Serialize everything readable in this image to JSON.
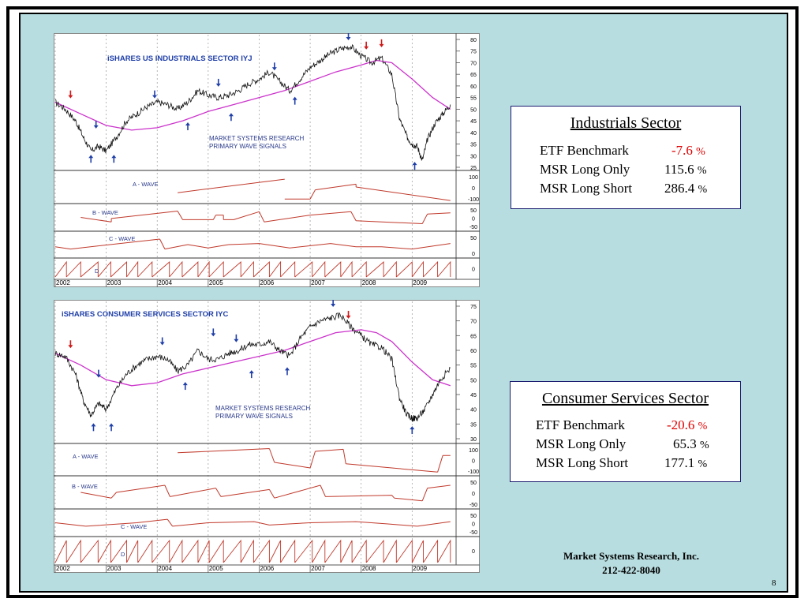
{
  "slide": {
    "page_number": "8",
    "footer_company": "Market Systems Research, Inc.",
    "footer_phone": "212-422-8040"
  },
  "colors": {
    "background_panel": "#b8dde0",
    "ma_line": "#cc33cc",
    "wave_line": "#c0392b",
    "up_arrow": "#1f3fa8",
    "down_arrow_blue": "#1f3fa8",
    "down_arrow_red": "#d01818",
    "negative_value": "#e00000",
    "title_blue": "#1f3fa8"
  },
  "summaries": [
    {
      "title": "Industrials Sector",
      "rows": [
        {
          "label": "ETF Benchmark",
          "value": "-7.6",
          "unit": "%",
          "negative": true
        },
        {
          "label": "MSR Long Only",
          "value": "115.6",
          "unit": "%",
          "negative": false
        },
        {
          "label": "MSR Long Short",
          "value": "286.4",
          "unit": "%",
          "negative": false
        }
      ]
    },
    {
      "title": "Consumer Services Sector",
      "rows": [
        {
          "label": "ETF Benchmark",
          "value": "-20.6",
          "unit": "%",
          "negative": true
        },
        {
          "label": "MSR Long Only",
          "value": "65.3",
          "unit": "%",
          "negative": false
        },
        {
          "label": "MSR Long Short",
          "value": "177.1",
          "unit": "%",
          "negative": false
        }
      ]
    }
  ],
  "chart_data": [
    {
      "type": "line",
      "title": "iSHARES US INDUSTRIALS SECTOR   IYJ",
      "annotation": [
        "MARKET SYSTEMS RESEARCH",
        "PRIMARY WAVE SIGNALS"
      ],
      "x_tick_labels": [
        "2002",
        "2003",
        "2004",
        "2005",
        "2006",
        "2007",
        "2008",
        "2009"
      ],
      "xlim": [
        2002.0,
        2009.8
      ],
      "ylim": [
        25,
        80
      ],
      "y_ticks": [
        25,
        30,
        35,
        40,
        45,
        50,
        55,
        60,
        65,
        70,
        75,
        80
      ],
      "grid": "vertical dotted at year boundaries",
      "price": {
        "x": [
          2002.0,
          2002.2,
          2002.4,
          2002.55,
          2002.7,
          2002.85,
          2003.0,
          2003.2,
          2003.4,
          2003.6,
          2003.8,
          2004.0,
          2004.2,
          2004.4,
          2004.6,
          2004.8,
          2005.0,
          2005.2,
          2005.4,
          2005.6,
          2005.8,
          2006.0,
          2006.2,
          2006.4,
          2006.6,
          2006.8,
          2007.0,
          2007.2,
          2007.4,
          2007.6,
          2007.8,
          2008.0,
          2008.2,
          2008.4,
          2008.6,
          2008.75,
          2008.9,
          2009.0,
          2009.1,
          2009.2,
          2009.3,
          2009.45,
          2009.6,
          2009.75
        ],
        "y": [
          53,
          50,
          45,
          38,
          32,
          34,
          32,
          38,
          45,
          48,
          51,
          53,
          52,
          50,
          53,
          58,
          56,
          55,
          56,
          58,
          61,
          63,
          66,
          62,
          58,
          63,
          68,
          71,
          74,
          76,
          77,
          73,
          70,
          72,
          65,
          46,
          38,
          35,
          34,
          28,
          37,
          44,
          48,
          52
        ]
      },
      "moving_average": {
        "x": [
          2002.0,
          2002.5,
          2003.0,
          2003.5,
          2004.0,
          2004.5,
          2005.0,
          2005.5,
          2006.0,
          2006.5,
          2007.0,
          2007.5,
          2008.0,
          2008.3,
          2008.6,
          2009.0,
          2009.4,
          2009.75
        ],
        "y": [
          53,
          48,
          43,
          41,
          42,
          45,
          49,
          52,
          55,
          58,
          62,
          66,
          69,
          71,
          70,
          63,
          55,
          50
        ]
      },
      "signals": [
        {
          "x": 2002.3,
          "y": 55,
          "type": "sell",
          "color": "red"
        },
        {
          "x": 2002.8,
          "y": 42,
          "type": "sell",
          "color": "blue"
        },
        {
          "x": 2002.7,
          "y": 30,
          "type": "buy",
          "color": "blue"
        },
        {
          "x": 2003.15,
          "y": 30,
          "type": "buy",
          "color": "blue"
        },
        {
          "x": 2003.95,
          "y": 55,
          "type": "sell",
          "color": "blue"
        },
        {
          "x": 2004.6,
          "y": 44,
          "type": "buy",
          "color": "blue"
        },
        {
          "x": 2005.2,
          "y": 60,
          "type": "sell",
          "color": "blue"
        },
        {
          "x": 2005.45,
          "y": 48,
          "type": "buy",
          "color": "blue"
        },
        {
          "x": 2006.3,
          "y": 67,
          "type": "sell",
          "color": "blue"
        },
        {
          "x": 2006.7,
          "y": 55,
          "type": "buy",
          "color": "blue"
        },
        {
          "x": 2007.75,
          "y": 80,
          "type": "sell",
          "color": "blue"
        },
        {
          "x": 2008.1,
          "y": 76,
          "type": "sell",
          "color": "red"
        },
        {
          "x": 2008.4,
          "y": 77,
          "type": "sell",
          "color": "red"
        },
        {
          "x": 2009.05,
          "y": 27,
          "type": "buy",
          "color": "blue"
        }
      ],
      "waves": [
        {
          "name": "A - WAVE",
          "y_ticks": [
            "100",
            "0",
            "-100"
          ],
          "segments": [
            [
              2004.4,
              -40,
              2006.5,
              55
            ],
            [
              2006.5,
              -85,
              2007.0,
              -85
            ],
            [
              2007.0,
              -85,
              2007.1,
              -20
            ],
            [
              2007.1,
              -20,
              2007.9,
              20
            ],
            [
              2007.9,
              20,
              2007.9,
              0
            ],
            [
              2007.9,
              0,
              2009.75,
              -95
            ]
          ]
        },
        {
          "name": "B - WAVE",
          "y_ticks": [
            "50",
            "0",
            "-50"
          ],
          "segments": [
            [
              2002.5,
              0,
              2003.1,
              -40
            ],
            [
              2003.1,
              -40,
              2003.1,
              -10
            ],
            [
              2003.1,
              -10,
              2004.4,
              55
            ],
            [
              2004.4,
              55,
              2004.5,
              -20
            ],
            [
              2004.5,
              -20,
              2005.1,
              -20
            ],
            [
              2005.1,
              -20,
              2005.15,
              20
            ],
            [
              2005.15,
              20,
              2005.3,
              20
            ],
            [
              2005.3,
              20,
              2005.3,
              -20
            ],
            [
              2005.3,
              -20,
              2005.5,
              -20
            ],
            [
              2005.5,
              -20,
              2006.0,
              50
            ],
            [
              2006.0,
              50,
              2006.1,
              -40
            ],
            [
              2006.1,
              -40,
              2007.0,
              20
            ],
            [
              2007.0,
              20,
              2007.8,
              50
            ],
            [
              2007.8,
              50,
              2007.9,
              -30
            ],
            [
              2007.9,
              -30,
              2009.2,
              -55
            ],
            [
              2009.2,
              -55,
              2009.3,
              30
            ],
            [
              2009.3,
              30,
              2009.75,
              40
            ]
          ]
        },
        {
          "name": "C - WAVE",
          "y_ticks": [
            "50",
            "0"
          ],
          "segments": [
            [
              2002.0,
              -20,
              2002.3,
              -40
            ],
            [
              2002.3,
              -40,
              2004.05,
              50
            ],
            [
              2004.05,
              50,
              2004.15,
              -40
            ],
            [
              2004.15,
              -40,
              2004.6,
              0
            ],
            [
              2004.6,
              0,
              2005.0,
              -30
            ],
            [
              2005.0,
              -30,
              2005.4,
              0
            ],
            [
              2005.4,
              0,
              2006.0,
              10
            ],
            [
              2006.0,
              10,
              2006.6,
              -30
            ],
            [
              2006.6,
              -30,
              2007.4,
              10
            ],
            [
              2007.4,
              10,
              2007.9,
              -20
            ],
            [
              2007.9,
              -20,
              2008.4,
              -20
            ],
            [
              2008.4,
              -20,
              2009.0,
              -40
            ],
            [
              2009.0,
              -40,
              2009.75,
              10
            ]
          ]
        },
        {
          "name": "D",
          "y_ticks": [
            "0"
          ],
          "sawtooth": true
        }
      ]
    },
    {
      "type": "line",
      "title": "iSHARES CONSUMER SERVICES SECTOR    IYC",
      "annotation": [
        "MARKET SYSTEMS RESEARCH",
        "PRIMARY WAVE SIGNALS"
      ],
      "x_tick_labels": [
        "2002",
        "2003",
        "2004",
        "2005",
        "2006",
        "2007",
        "2008",
        "2009"
      ],
      "xlim": [
        2002.0,
        2009.8
      ],
      "ylim": [
        30,
        75
      ],
      "y_ticks": [
        30,
        35,
        40,
        45,
        50,
        55,
        60,
        65,
        70,
        75
      ],
      "grid": "vertical dotted at year boundaries",
      "price": {
        "x": [
          2002.0,
          2002.2,
          2002.4,
          2002.55,
          2002.7,
          2002.85,
          2003.0,
          2003.2,
          2003.4,
          2003.6,
          2003.8,
          2004.0,
          2004.2,
          2004.4,
          2004.6,
          2004.8,
          2005.0,
          2005.2,
          2005.4,
          2005.6,
          2005.8,
          2006.0,
          2006.2,
          2006.4,
          2006.6,
          2006.8,
          2007.0,
          2007.2,
          2007.4,
          2007.6,
          2007.8,
          2008.0,
          2008.2,
          2008.4,
          2008.6,
          2008.75,
          2008.9,
          2009.0,
          2009.1,
          2009.25,
          2009.4,
          2009.55,
          2009.75
        ],
        "y": [
          59,
          58,
          52,
          43,
          38,
          42,
          40,
          47,
          52,
          55,
          57,
          58,
          57,
          53,
          55,
          60,
          57,
          57,
          59,
          60,
          62,
          62,
          63,
          60,
          58,
          64,
          68,
          70,
          71,
          72,
          68,
          65,
          62,
          61,
          57,
          44,
          38,
          37,
          37,
          40,
          45,
          50,
          54
        ]
      },
      "moving_average": {
        "x": [
          2002.0,
          2002.5,
          2003.0,
          2003.5,
          2004.0,
          2004.5,
          2005.0,
          2005.5,
          2006.0,
          2006.5,
          2007.0,
          2007.5,
          2008.0,
          2008.3,
          2008.6,
          2009.0,
          2009.4,
          2009.75
        ],
        "y": [
          59,
          55,
          50,
          48,
          49,
          52,
          54,
          56,
          58,
          60,
          63,
          66,
          67,
          66,
          63,
          56,
          50,
          48
        ]
      },
      "signals": [
        {
          "x": 2002.3,
          "y": 61,
          "type": "sell",
          "color": "red"
        },
        {
          "x": 2002.85,
          "y": 51,
          "type": "sell",
          "color": "blue"
        },
        {
          "x": 2002.75,
          "y": 35,
          "type": "buy",
          "color": "blue"
        },
        {
          "x": 2003.1,
          "y": 35,
          "type": "buy",
          "color": "blue"
        },
        {
          "x": 2004.1,
          "y": 62,
          "type": "sell",
          "color": "blue"
        },
        {
          "x": 2004.55,
          "y": 49,
          "type": "buy",
          "color": "blue"
        },
        {
          "x": 2005.1,
          "y": 65,
          "type": "sell",
          "color": "blue"
        },
        {
          "x": 2005.55,
          "y": 63,
          "type": "sell",
          "color": "blue"
        },
        {
          "x": 2005.85,
          "y": 53,
          "type": "buy",
          "color": "blue"
        },
        {
          "x": 2006.55,
          "y": 54,
          "type": "buy",
          "color": "blue"
        },
        {
          "x": 2007.45,
          "y": 75,
          "type": "sell",
          "color": "blue"
        },
        {
          "x": 2007.75,
          "y": 71,
          "type": "sell",
          "color": "red"
        },
        {
          "x": 2009.0,
          "y": 34,
          "type": "buy",
          "color": "blue"
        }
      ],
      "waves": [
        {
          "name": "A - WAVE",
          "y_ticks": [
            "100",
            "0",
            "-100"
          ],
          "segments": [
            [
              2004.4,
              50,
              2006.2,
              80
            ],
            [
              2006.2,
              80,
              2006.3,
              -20
            ],
            [
              2006.3,
              -20,
              2007.0,
              -60
            ],
            [
              2007.0,
              -60,
              2007.1,
              60
            ],
            [
              2007.1,
              60,
              2007.65,
              75
            ],
            [
              2007.65,
              75,
              2007.7,
              -30
            ],
            [
              2007.7,
              -30,
              2009.5,
              -90
            ],
            [
              2009.5,
              -90,
              2009.6,
              30
            ],
            [
              2009.6,
              30,
              2009.75,
              30
            ]
          ]
        },
        {
          "name": "B - WAVE",
          "y_ticks": [
            "50",
            "0",
            "-50"
          ],
          "segments": [
            [
              2002.5,
              0,
              2003.1,
              -40
            ],
            [
              2003.1,
              -40,
              2003.2,
              0
            ],
            [
              2003.2,
              0,
              2004.15,
              50
            ],
            [
              2004.15,
              50,
              2004.25,
              -30
            ],
            [
              2004.25,
              -30,
              2005.15,
              30
            ],
            [
              2005.15,
              30,
              2005.25,
              -30
            ],
            [
              2005.25,
              -30,
              2006.2,
              20
            ],
            [
              2006.2,
              20,
              2006.3,
              -40
            ],
            [
              2006.3,
              -40,
              2007.2,
              50
            ],
            [
              2007.2,
              50,
              2007.3,
              -30
            ],
            [
              2007.3,
              -30,
              2008.6,
              -20
            ],
            [
              2008.6,
              -20,
              2008.65,
              -40
            ],
            [
              2008.65,
              -40,
              2009.2,
              -60
            ],
            [
              2009.2,
              -60,
              2009.3,
              30
            ],
            [
              2009.3,
              30,
              2009.75,
              50
            ]
          ]
        },
        {
          "name": "C - WAVE",
          "y_ticks": [
            "50",
            "0",
            "-50"
          ],
          "segments": [
            [
              2002.0,
              0,
              2002.6,
              -30
            ],
            [
              2002.6,
              -30,
              2003.6,
              0
            ],
            [
              2003.6,
              0,
              2004.2,
              30
            ],
            [
              2004.2,
              30,
              2004.3,
              -30
            ],
            [
              2004.3,
              -30,
              2005.0,
              0
            ],
            [
              2005.0,
              0,
              2005.9,
              10
            ],
            [
              2005.9,
              10,
              2006.2,
              -20
            ],
            [
              2006.2,
              -20,
              2007.0,
              0
            ],
            [
              2007.0,
              0,
              2007.9,
              10
            ],
            [
              2007.9,
              10,
              2008.5,
              -10
            ],
            [
              2008.5,
              -10,
              2009.1,
              -30
            ],
            [
              2009.1,
              -30,
              2009.75,
              10
            ]
          ]
        },
        {
          "name": "D",
          "y_ticks": [
            "0"
          ],
          "sawtooth": true
        }
      ]
    }
  ]
}
